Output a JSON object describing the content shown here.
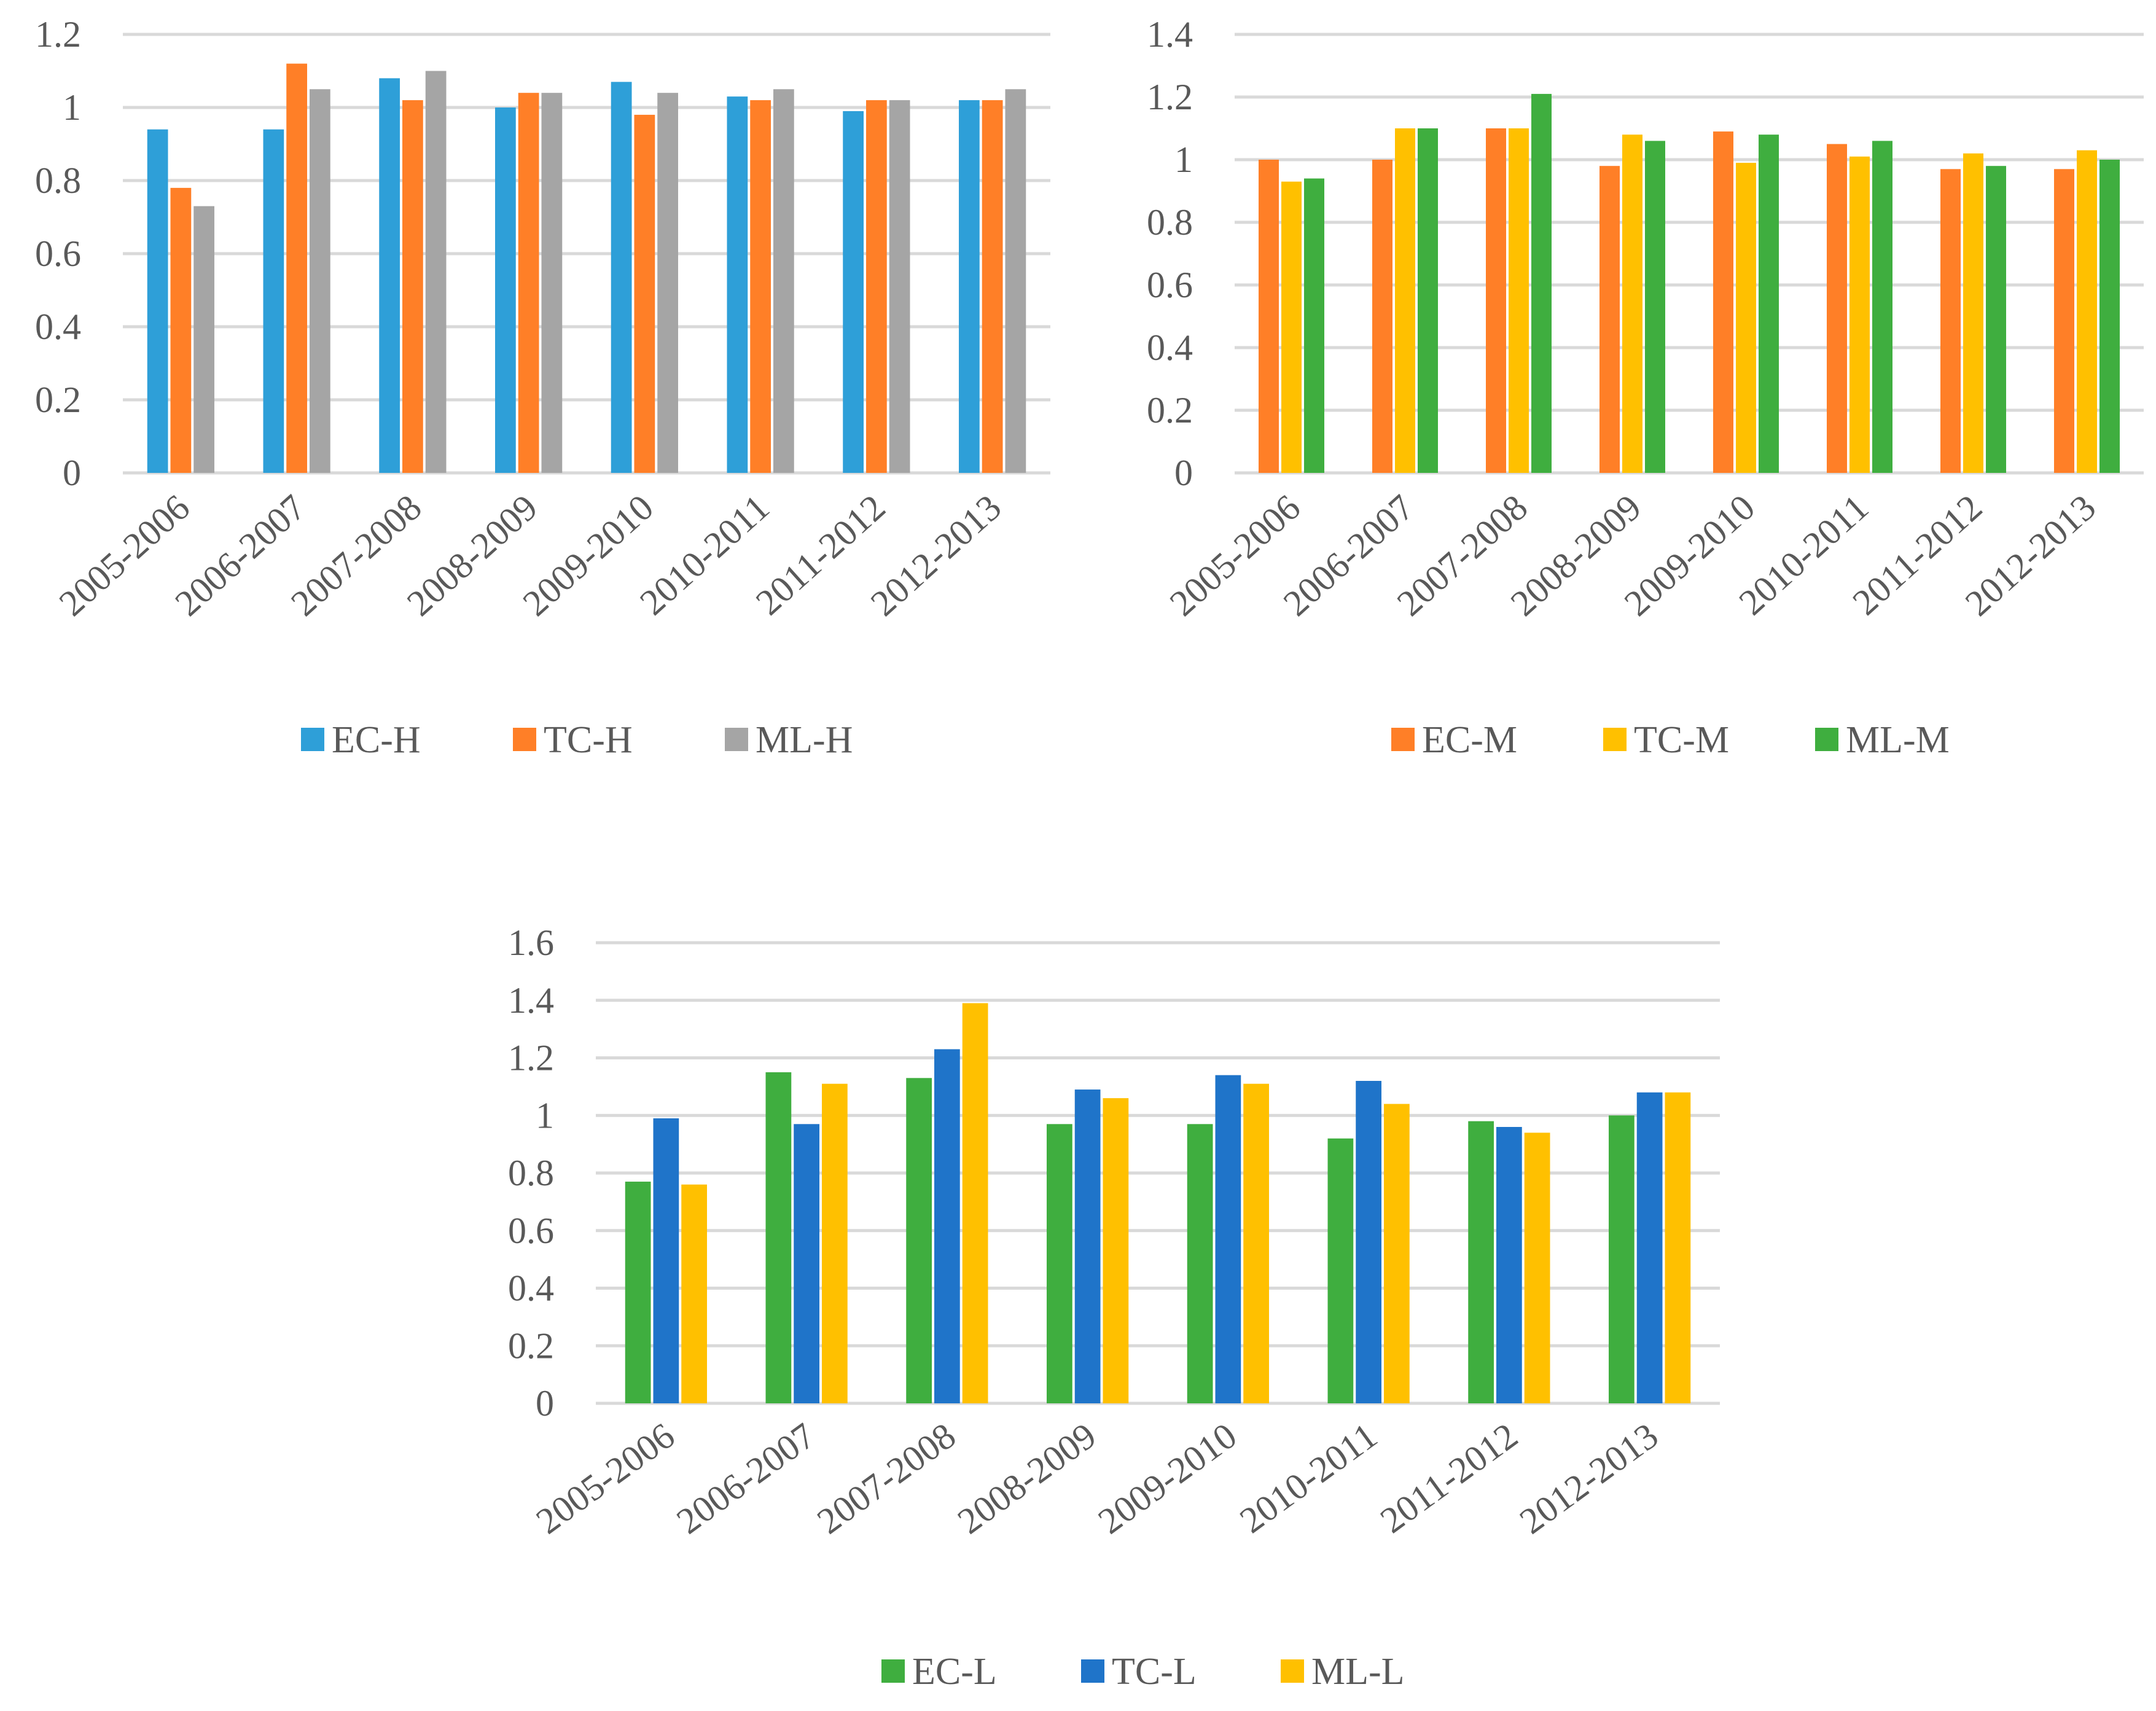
{
  "chart_data": [
    {
      "type": "bar",
      "categories": [
        "2005-2006",
        "2006-2007",
        "2007-2008",
        "2008-2009",
        "2009-2010",
        "2010-2011",
        "2011-2012",
        "2012-2013"
      ],
      "ylim": [
        0,
        1.2
      ],
      "yticks": [
        "0",
        "0.2",
        "0.4",
        "0.6",
        "0.8",
        "1",
        "1.2"
      ],
      "grid": true,
      "legend_position": "bottom",
      "series": [
        {
          "name": "EC-H",
          "color": "#2E9FD8",
          "values": [
            0.94,
            0.94,
            1.08,
            1.0,
            1.07,
            1.03,
            0.99,
            1.02
          ]
        },
        {
          "name": "TC-H",
          "color": "#FF7F27",
          "values": [
            0.78,
            1.12,
            1.02,
            1.04,
            0.98,
            1.02,
            1.02,
            1.02
          ]
        },
        {
          "name": "ML-H",
          "color": "#A5A5A5",
          "values": [
            0.73,
            1.05,
            1.1,
            1.04,
            1.04,
            1.05,
            1.02,
            1.05
          ]
        }
      ]
    },
    {
      "type": "bar",
      "categories": [
        "2005-2006",
        "2006-2007",
        "2007-2008",
        "2008-2009",
        "2009-2010",
        "2010-2011",
        "2011-2012",
        "2012-2013"
      ],
      "ylim": [
        0,
        1.4
      ],
      "yticks": [
        "0",
        "0.2",
        "0.4",
        "0.6",
        "0.8",
        "1",
        "1.2",
        "1.4"
      ],
      "grid": true,
      "legend_position": "bottom",
      "series": [
        {
          "name": "EC-M",
          "color": "#FF7F27",
          "values": [
            1.0,
            1.0,
            1.1,
            0.98,
            1.09,
            1.05,
            0.97,
            0.97
          ]
        },
        {
          "name": "TC-M",
          "color": "#FFC000",
          "values": [
            0.93,
            1.1,
            1.1,
            1.08,
            0.99,
            1.01,
            1.02,
            1.03
          ]
        },
        {
          "name": "ML-M",
          "color": "#3FAE3F",
          "values": [
            0.94,
            1.1,
            1.21,
            1.06,
            1.08,
            1.06,
            0.98,
            1.0
          ]
        }
      ]
    },
    {
      "type": "bar",
      "categories": [
        "2005-2006",
        "2006-2007",
        "2007-2008",
        "2008-2009",
        "2009-2010",
        "2010-2011",
        "2011-2012",
        "2012-2013"
      ],
      "ylim": [
        0,
        1.6
      ],
      "yticks": [
        "0",
        "0.2",
        "0.4",
        "0.6",
        "0.8",
        "1",
        "1.2",
        "1.4",
        "1.6"
      ],
      "grid": true,
      "legend_position": "bottom",
      "series": [
        {
          "name": "EC-L",
          "color": "#3FAE3F",
          "values": [
            0.77,
            1.15,
            1.13,
            0.97,
            0.97,
            0.92,
            0.98,
            1.0
          ]
        },
        {
          "name": "TC-L",
          "color": "#1F74C9",
          "values": [
            0.99,
            0.97,
            1.23,
            1.09,
            1.14,
            1.12,
            0.96,
            1.08
          ]
        },
        {
          "name": "ML-L",
          "color": "#FFC000",
          "values": [
            0.76,
            1.11,
            1.39,
            1.06,
            1.11,
            1.04,
            0.94,
            1.08
          ]
        }
      ]
    }
  ]
}
